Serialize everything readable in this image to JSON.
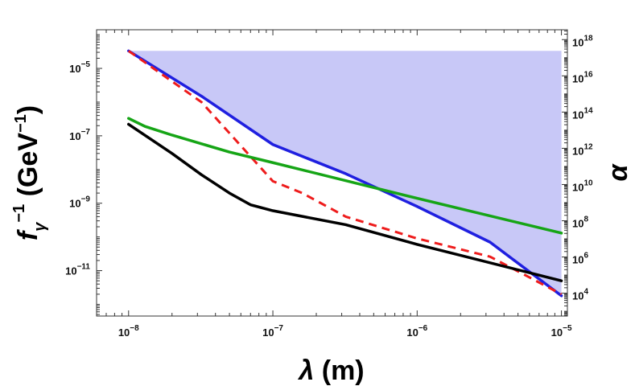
{
  "chart_data": {
    "type": "line",
    "title": "",
    "x_scale": "log",
    "y_scale": "log",
    "y2_scale": "log",
    "xlim": [
      6e-09,
      1.1e-05
    ],
    "ylim": [
      4.5e-13,
      0.00014
    ],
    "y2lim": [
      550.0,
      3.5e+18
    ],
    "xlabel": {
      "symbol": "λ",
      "text": " (m)"
    },
    "ylabel": {
      "symbol": "f",
      "sub": "γ",
      "sup1": "−1",
      "text": " (GeV",
      "sup2": "−1",
      "close": ")"
    },
    "y2label": {
      "symbol": "α"
    },
    "x_ticks": [
      {
        "value": 1e-08,
        "base": "10",
        "exp": "−8"
      },
      {
        "value": 1e-07,
        "base": "10",
        "exp": "−7"
      },
      {
        "value": 1e-06,
        "base": "10",
        "exp": "−6"
      },
      {
        "value": 1e-05,
        "base": "10",
        "exp": "−5"
      }
    ],
    "y_ticks": [
      {
        "value": 1e-05,
        "base": "10",
        "exp": "−5"
      },
      {
        "value": 1e-07,
        "base": "10",
        "exp": "−7"
      },
      {
        "value": 1e-09,
        "base": "10",
        "exp": "−9"
      },
      {
        "value": 1e-11,
        "base": "10",
        "exp": "−11"
      }
    ],
    "y2_ticks": [
      {
        "value": 1e+18,
        "base": "10",
        "exp": "18"
      },
      {
        "value": 1e+16,
        "base": "10",
        "exp": "16"
      },
      {
        "value": 100000000000000.0,
        "base": "10",
        "exp": "14"
      },
      {
        "value": 1000000000000.0,
        "base": "10",
        "exp": "12"
      },
      {
        "value": 10000000000.0,
        "base": "10",
        "exp": "10"
      },
      {
        "value": 100000000.0,
        "base": "10",
        "exp": "8"
      },
      {
        "value": 1000000.0,
        "base": "10",
        "exp": "6"
      },
      {
        "value": 10000.0,
        "base": "10",
        "exp": "4"
      }
    ],
    "grid": false,
    "legend": "none",
    "shaded_region": {
      "color": "#c8c8f7",
      "upper_y": 3.3e-05,
      "boundary_series": "blue"
    },
    "series": [
      {
        "key": "blue",
        "color": "#1f1fe0",
        "style": "solid",
        "points": [
          [
            1e-08,
            3.3e-05
          ],
          [
            3.2e-08,
            1.5e-06
          ],
          [
            1e-07,
            5.5e-08
          ],
          [
            3.2e-07,
            7.5e-09
          ],
          [
            1e-06,
            8e-10
          ],
          [
            3.2e-06,
            7e-11
          ],
          [
            1e-05,
            1.8e-12
          ]
        ]
      },
      {
        "key": "red",
        "color": "#ee1c1c",
        "style": "dashed",
        "points": [
          [
            1e-08,
            3.3e-05
          ],
          [
            3.2e-08,
            1e-06
          ],
          [
            5e-08,
            1.2e-07
          ],
          [
            1e-07,
            4.5e-09
          ],
          [
            1.6e-07,
            2e-09
          ],
          [
            3.2e-07,
            4e-10
          ],
          [
            1e-06,
            9e-11
          ],
          [
            3.2e-06,
            2.6e-11
          ],
          [
            1e-05,
            2e-12
          ]
        ]
      },
      {
        "key": "green",
        "color": "#16a516",
        "style": "solid",
        "points": [
          [
            1e-08,
            3.3e-07
          ],
          [
            1.3e-08,
            1.9e-07
          ],
          [
            2e-08,
            1.05e-07
          ],
          [
            5e-08,
            3.3e-08
          ],
          [
            1e-07,
            1.6e-08
          ],
          [
            1e-06,
            1.4e-09
          ],
          [
            1e-05,
            1.3e-10
          ]
        ]
      },
      {
        "key": "black",
        "color": "#000000",
        "style": "solid",
        "points": [
          [
            1e-08,
            2.2e-07
          ],
          [
            2e-08,
            3e-08
          ],
          [
            3.2e-08,
            7e-09
          ],
          [
            5e-08,
            2e-09
          ],
          [
            7e-08,
            9e-10
          ],
          [
            1e-07,
            6e-10
          ],
          [
            3.2e-07,
            2.3e-10
          ],
          [
            1e-06,
            6e-11
          ],
          [
            1e-05,
            5e-12
          ]
        ]
      }
    ]
  }
}
